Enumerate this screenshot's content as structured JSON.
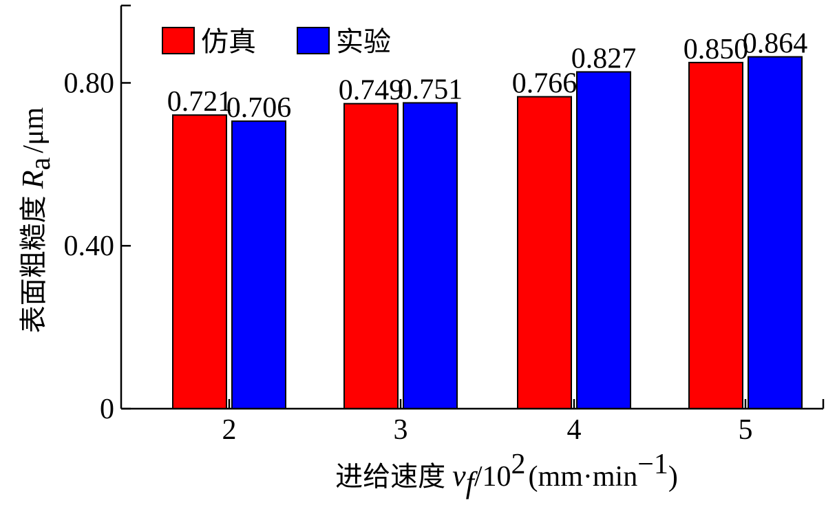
{
  "chart_data": {
    "type": "bar",
    "categories": [
      "2",
      "3",
      "4",
      "5"
    ],
    "series": [
      {
        "name": "仿真",
        "values": [
          0.721,
          0.749,
          0.766,
          0.85
        ],
        "labels": [
          "0.721",
          "0.749",
          "0.766",
          "0.850"
        ],
        "color": "#ff0000"
      },
      {
        "name": "实验",
        "values": [
          0.706,
          0.751,
          0.827,
          0.864
        ],
        "labels": [
          "0.706",
          "0.751",
          "0.827",
          "0.864"
        ],
        "color": "#0000ff"
      }
    ],
    "ylim": [
      0,
      0.99
    ],
    "yticks": [
      0,
      0.4,
      0.8
    ],
    "ytick_labels": [
      "0",
      "0.40",
      "0.80"
    ],
    "ylabel": {
      "text": "表面粗糙度",
      "symbol": "R",
      "subscript": "a",
      "unit": "/μm"
    },
    "xlabel": {
      "text": "进给速度",
      "symbol": "v",
      "subscript": "f",
      "scale": "/10",
      "exponent": "2",
      "unit": "(mm·min",
      "unit_exp": "−1",
      "unit_close": ")"
    },
    "legend_position": "top-left",
    "grid": false
  }
}
